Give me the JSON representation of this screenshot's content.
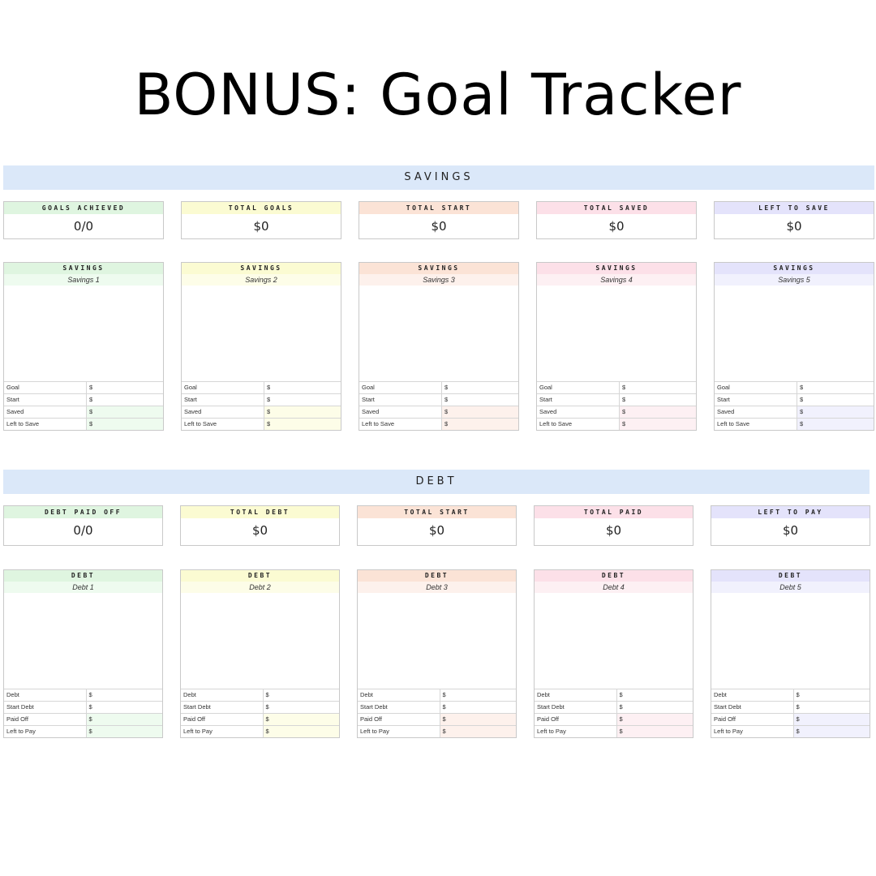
{
  "page": {
    "title": "BONUS: Goal Tracker"
  },
  "colors": {
    "banner": "#dbe8f9",
    "headers": [
      "#dff5e0",
      "#fbfbd2",
      "#fbe3d6",
      "#fce0e8",
      "#e4e3fb"
    ],
    "tints": [
      "#eefbef",
      "#fdfde8",
      "#fdf1ec",
      "#fdf0f3",
      "#f1f1fd"
    ]
  },
  "savings": {
    "banner": "SAVINGS",
    "summary": [
      {
        "label": "GOALS ACHIEVED",
        "value": "0/0"
      },
      {
        "label": "TOTAL GOALS",
        "value": "$0"
      },
      {
        "label": "TOTAL START",
        "value": "$0"
      },
      {
        "label": "TOTAL SAVED",
        "value": "$0"
      },
      {
        "label": "LEFT TO SAVE",
        "value": "$0"
      }
    ],
    "cards": [
      {
        "header": "SAVINGS",
        "name": "Savings 1",
        "rows": [
          {
            "label": "Goal",
            "value": "$"
          },
          {
            "label": "Start",
            "value": "$"
          },
          {
            "label": "Saved",
            "value": "$"
          },
          {
            "label": "Left to Save",
            "value": "$"
          }
        ]
      },
      {
        "header": "SAVINGS",
        "name": "Savings 2",
        "rows": [
          {
            "label": "Goal",
            "value": "$"
          },
          {
            "label": "Start",
            "value": "$"
          },
          {
            "label": "Saved",
            "value": "$"
          },
          {
            "label": "Left to Save",
            "value": "$"
          }
        ]
      },
      {
        "header": "SAVINGS",
        "name": "Savings 3",
        "rows": [
          {
            "label": "Goal",
            "value": "$"
          },
          {
            "label": "Start",
            "value": "$"
          },
          {
            "label": "Saved",
            "value": "$"
          },
          {
            "label": "Left to Save",
            "value": "$"
          }
        ]
      },
      {
        "header": "SAVINGS",
        "name": "Savings 4",
        "rows": [
          {
            "label": "Goal",
            "value": "$"
          },
          {
            "label": "Start",
            "value": "$"
          },
          {
            "label": "Saved",
            "value": "$"
          },
          {
            "label": "Left to Save",
            "value": "$"
          }
        ]
      },
      {
        "header": "SAVINGS",
        "name": "Savings 5",
        "rows": [
          {
            "label": "Goal",
            "value": "$"
          },
          {
            "label": "Start",
            "value": "$"
          },
          {
            "label": "Saved",
            "value": "$"
          },
          {
            "label": "Left to Save",
            "value": "$"
          }
        ]
      }
    ]
  },
  "debt": {
    "banner": "DEBT",
    "summary": [
      {
        "label": "DEBT PAID OFF",
        "value": "0/0"
      },
      {
        "label": "TOTAL DEBT",
        "value": "$0"
      },
      {
        "label": "TOTAL START",
        "value": "$0"
      },
      {
        "label": "TOTAL PAID",
        "value": "$0"
      },
      {
        "label": "LEFT TO PAY",
        "value": "$0"
      }
    ],
    "cards": [
      {
        "header": "DEBT",
        "name": "Debt 1",
        "rows": [
          {
            "label": "Debt",
            "value": "$"
          },
          {
            "label": "Start Debt",
            "value": "$"
          },
          {
            "label": "Paid Off",
            "value": "$"
          },
          {
            "label": "Left to Pay",
            "value": "$"
          }
        ]
      },
      {
        "header": "DEBT",
        "name": "Debt 2",
        "rows": [
          {
            "label": "Debt",
            "value": "$"
          },
          {
            "label": "Start Debt",
            "value": "$"
          },
          {
            "label": "Paid Off",
            "value": "$"
          },
          {
            "label": "Left to Pay",
            "value": "$"
          }
        ]
      },
      {
        "header": "DEBT",
        "name": "Debt 3",
        "rows": [
          {
            "label": "Debt",
            "value": "$"
          },
          {
            "label": "Start Debt",
            "value": "$"
          },
          {
            "label": "Paid Off",
            "value": "$"
          },
          {
            "label": "Left to Pay",
            "value": "$"
          }
        ]
      },
      {
        "header": "DEBT",
        "name": "Debt 4",
        "rows": [
          {
            "label": "Debt",
            "value": "$"
          },
          {
            "label": "Start Debt",
            "value": "$"
          },
          {
            "label": "Paid Off",
            "value": "$"
          },
          {
            "label": "Left to Pay",
            "value": "$"
          }
        ]
      },
      {
        "header": "DEBT",
        "name": "Debt 5",
        "rows": [
          {
            "label": "Debt",
            "value": "$"
          },
          {
            "label": "Start Debt",
            "value": "$"
          },
          {
            "label": "Paid Off",
            "value": "$"
          },
          {
            "label": "Left to Pay",
            "value": "$"
          }
        ]
      }
    ]
  }
}
